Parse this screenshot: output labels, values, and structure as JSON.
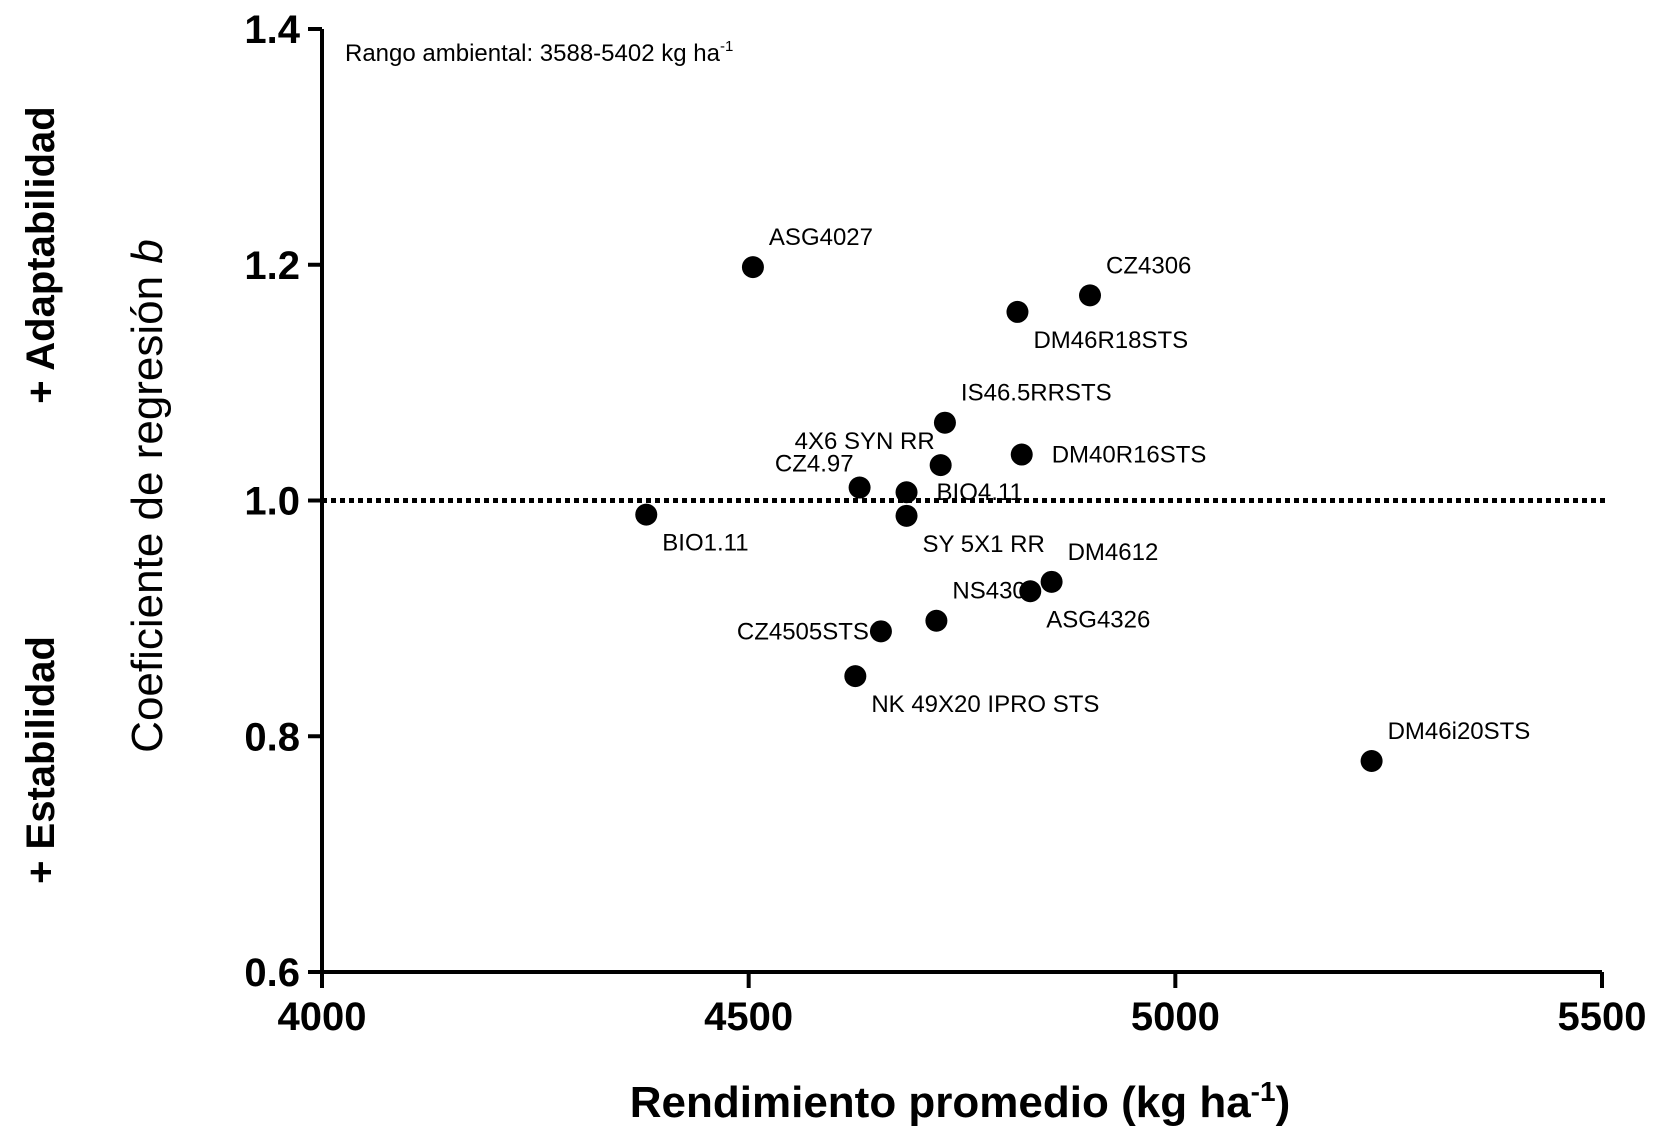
{
  "chart_data": {
    "type": "scatter",
    "title": "",
    "annotation": "Rango ambiental: 3588-5402 kg ha-1",
    "xlabel": "Rendimiento promedio (kg ha-1)",
    "ylabel": "Coeficiente de regresión b",
    "side_labels": {
      "top": "+ Adaptabilidad",
      "bottom": "+ Estabilidad"
    },
    "xlim": [
      4000,
      5500
    ],
    "ylim": [
      0.6,
      1.4
    ],
    "xticks": [
      4000,
      4500,
      5000,
      5500
    ],
    "yticks": [
      0.6,
      0.8,
      1.0,
      1.2,
      1.4
    ],
    "xtick_labels": [
      "4000",
      "4500",
      "5000",
      "5500"
    ],
    "ytick_labels": [
      "0.6",
      "0.8",
      "1.0",
      "1.2",
      "1.4"
    ],
    "reference_line": {
      "y": 1.0,
      "style": "dotted"
    },
    "grid": false,
    "point_color": "#000000",
    "points": [
      {
        "label": "ASG4027",
        "x": 4505,
        "y": 1.198,
        "label_pos": "above-right"
      },
      {
        "label": "CZ4306",
        "x": 4900,
        "y": 1.174,
        "label_pos": "above-right"
      },
      {
        "label": "DM46R18STS",
        "x": 4815,
        "y": 1.16,
        "label_pos": "below-right"
      },
      {
        "label": "IS46.5RRSTS",
        "x": 4730,
        "y": 1.066,
        "label_pos": "above-right"
      },
      {
        "label": "4X6 SYN RR",
        "x": 4725,
        "y": 1.03,
        "label_pos": "above-left"
      },
      {
        "label": "DM40R16STS",
        "x": 4820,
        "y": 1.039,
        "label_pos": "right"
      },
      {
        "label": "CZ4.97",
        "x": 4630,
        "y": 1.011,
        "label_pos": "above-left"
      },
      {
        "label": "BIO4.11",
        "x": 4685,
        "y": 1.007,
        "label_pos": "right"
      },
      {
        "label": "BIO1.11",
        "x": 4380,
        "y": 0.988,
        "label_pos": "below-right"
      },
      {
        "label": "SY 5X1 RR",
        "x": 4685,
        "y": 0.987,
        "label_pos": "below-right"
      },
      {
        "label": "DM4612",
        "x": 4855,
        "y": 0.931,
        "label_pos": "above-right"
      },
      {
        "label": "ASG4326",
        "x": 4830,
        "y": 0.923,
        "label_pos": "below-right"
      },
      {
        "label": "NS4309",
        "x": 4720,
        "y": 0.898,
        "label_pos": "above-right"
      },
      {
        "label": "CZ4505STS",
        "x": 4655,
        "y": 0.889,
        "label_pos": "left"
      },
      {
        "label": "NK 49X20 IPRO STS",
        "x": 4625,
        "y": 0.851,
        "label_pos": "below-right"
      },
      {
        "label": "DM46i20STS",
        "x": 5230,
        "y": 0.779,
        "label_pos": "above-right"
      }
    ]
  }
}
